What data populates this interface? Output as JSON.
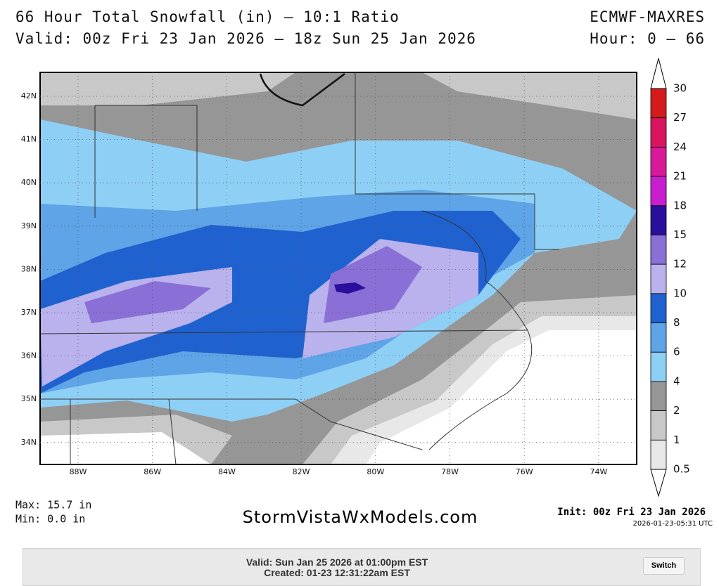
{
  "header": {
    "title": "66 Hour Total Snowfall (in) – 10:1 Ratio",
    "valid": "Valid: 00z Fri 23 Jan 2026 – 18z Sun 25 Jan 2026",
    "model": "ECMWF-MAXRES",
    "hour": "Hour: 0 – 66"
  },
  "map": {
    "lat_labels": [
      "42N",
      "41N",
      "40N",
      "39N",
      "38N",
      "37N",
      "36N",
      "35N",
      "34N"
    ],
    "lon_labels": [
      "88W",
      "86W",
      "84W",
      "82W",
      "80W",
      "78W",
      "76W",
      "74W"
    ]
  },
  "colorbar": {
    "levels": [
      "30",
      "27",
      "24",
      "21",
      "18",
      "15",
      "12",
      "10",
      "8",
      "6",
      "4",
      "2",
      "1",
      "0.5"
    ],
    "colors": [
      "#d41a1a",
      "#d8155e",
      "#d8199a",
      "#c81ed0",
      "#2a0f9c",
      "#8a6fd6",
      "#b9b2ec",
      "#1f62cf",
      "#5ea4e6",
      "#8ecff5",
      "#969696",
      "#c8c8c8",
      "#e8e8e8"
    ]
  },
  "footer": {
    "max": "Max: 15.7 in",
    "min": "Min: 0.0 in",
    "site": "StormVistaWxModels.com",
    "init": "Init: 00z Fri 23 Jan 2026",
    "timestamp": "2026-01-23-05:31 UTC"
  },
  "bar": {
    "valid": "Valid: Sun Jan 25 2026 at 01:00pm EST",
    "created": "Created: 01-23 12:31:22am EST",
    "button": "Switch"
  }
}
